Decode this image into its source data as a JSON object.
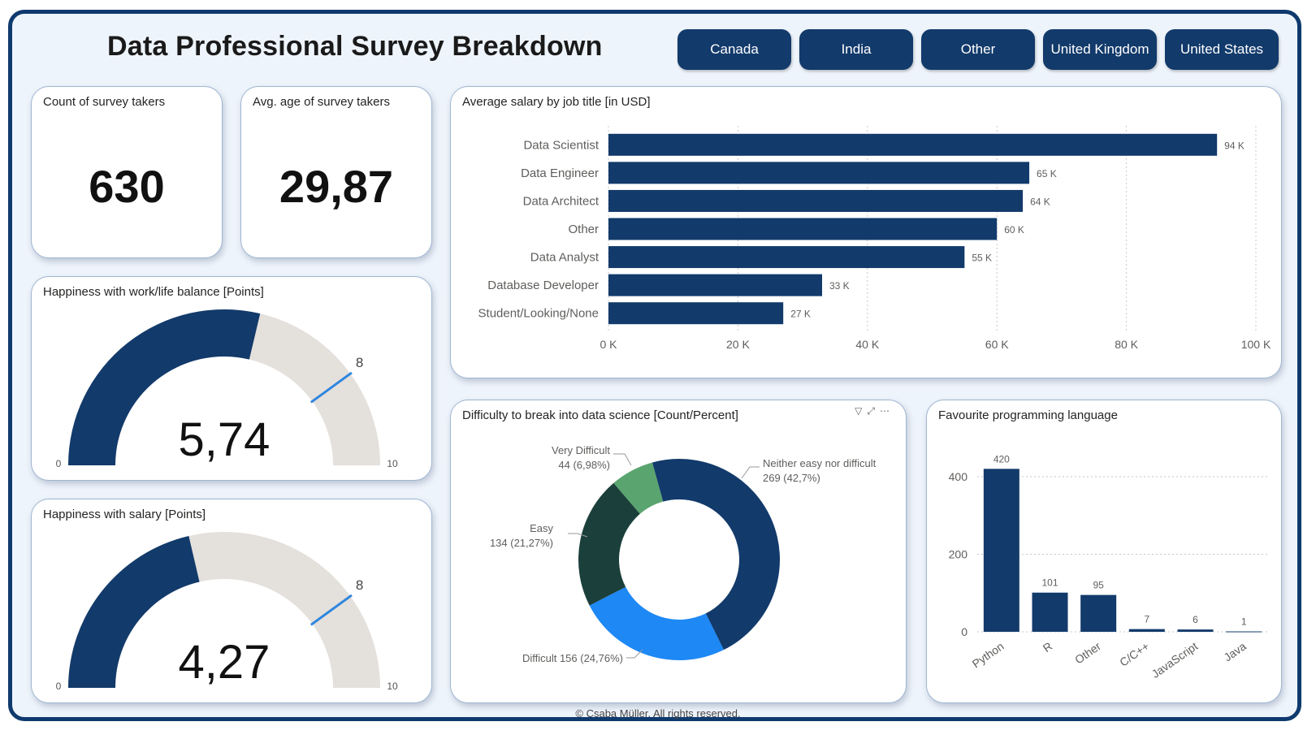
{
  "header": {
    "title": "Data Professional Survey Breakdown"
  },
  "slicers": [
    "Canada",
    "India",
    "Other",
    "United Kingdom",
    "United States"
  ],
  "kpis": {
    "count": {
      "label": "Count of survey takers",
      "value": "630"
    },
    "age": {
      "label": "Avg. age of survey takers",
      "value": "29,87"
    }
  },
  "gauges": [
    {
      "title": "Happiness with work/life balance [Points]",
      "value": 5.74,
      "value_label": "5,74",
      "target": 8,
      "target_label": "8",
      "min": 0,
      "max": 10,
      "min_label": "0",
      "max_label": "10"
    },
    {
      "title": "Happiness with salary [Points]",
      "value": 4.27,
      "value_label": "4,27",
      "target": 8,
      "target_label": "8",
      "min": 0,
      "max": 10,
      "min_label": "0",
      "max_label": "10"
    }
  ],
  "footer": "© Csaba Müller. All rights reserved.",
  "colors": {
    "primary": "#123a6b",
    "gauge_track": "#e4e0dc",
    "target": "#2e86de",
    "donut": [
      "#123a6b",
      "#1e88f5",
      "#1b3f3a",
      "#5aa46f",
      "#123a6b"
    ]
  },
  "chart_data": [
    {
      "type": "bar",
      "orientation": "horizontal",
      "title": "Average salary by job title [in USD]",
      "categories": [
        "Data Scientist",
        "Data Engineer",
        "Data Architect",
        "Other",
        "Data Analyst",
        "Database Developer",
        "Student/Looking/None"
      ],
      "values": [
        94,
        65,
        64,
        60,
        55,
        33,
        27
      ],
      "data_labels": [
        "94 K",
        "65 K",
        "64 K",
        "60 K",
        "55 K",
        "33 K",
        "27 K"
      ],
      "xlim": [
        0,
        100
      ],
      "xticks": [
        "0 K",
        "20 K",
        "40 K",
        "60 K",
        "80 K",
        "100 K"
      ],
      "grid": true
    },
    {
      "type": "pie",
      "variant": "donut",
      "title": "Difficulty to break into data science [Count/Percent]",
      "slices": [
        {
          "label": "Neither easy nor difficult",
          "value": 269,
          "pct": "42,7%",
          "text": "269 (42,7%)"
        },
        {
          "label": "Difficult",
          "value": 156,
          "pct": "24,76%",
          "text": "Difficult 156 (24,76%)"
        },
        {
          "label": "Easy",
          "value": 134,
          "pct": "21,27%",
          "text": "134 (21,27%)"
        },
        {
          "label": "Very Difficult",
          "value": 44,
          "pct": "6,98%",
          "text": "44 (6,98%)"
        },
        {
          "label": "",
          "value": 27,
          "pct": "",
          "text": ""
        }
      ]
    },
    {
      "type": "bar",
      "title": "Favourite programming language",
      "categories": [
        "Python",
        "R",
        "Other",
        "C/C++",
        "JavaScript",
        "Java"
      ],
      "values": [
        420,
        101,
        95,
        7,
        6,
        1
      ],
      "ylim": [
        0,
        450
      ],
      "yticks": [
        "0",
        "200",
        "400"
      ],
      "grid": true
    }
  ]
}
